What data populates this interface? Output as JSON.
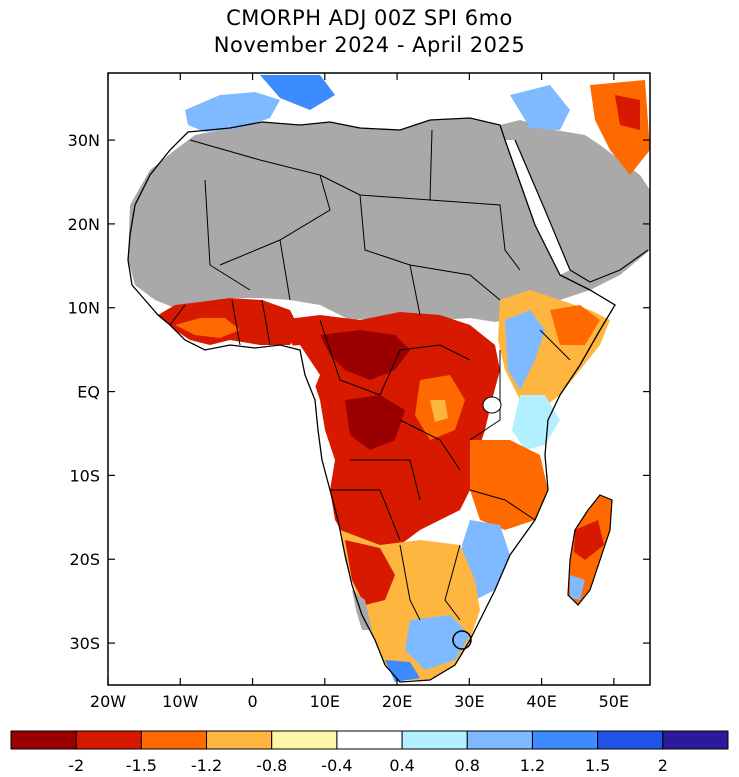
{
  "title": {
    "line1": "CMORPH ADJ 00Z SPI 6mo",
    "line2": "November 2024 - April 2025"
  },
  "map": {
    "lon_range": [
      -20,
      55
    ],
    "lat_range": [
      -35,
      38
    ],
    "lat_ticks": [
      {
        "value": 30,
        "label": "30N"
      },
      {
        "value": 20,
        "label": "20N"
      },
      {
        "value": 10,
        "label": "10N"
      },
      {
        "value": 0,
        "label": "EQ"
      },
      {
        "value": -10,
        "label": "10S"
      },
      {
        "value": -20,
        "label": "20S"
      },
      {
        "value": -30,
        "label": "30S"
      }
    ],
    "lon_ticks": [
      {
        "value": -20,
        "label": "20W"
      },
      {
        "value": -10,
        "label": "10W"
      },
      {
        "value": 0,
        "label": "0"
      },
      {
        "value": 10,
        "label": "10E"
      },
      {
        "value": 20,
        "label": "20E"
      },
      {
        "value": 30,
        "label": "30E"
      },
      {
        "value": 40,
        "label": "40E"
      },
      {
        "value": 50,
        "label": "50E"
      }
    ],
    "no_data_color": "#a9a9a9",
    "land_border_color": "#000000"
  },
  "legend": {
    "colors": [
      "#9b0000",
      "#d71900",
      "#ff6a00",
      "#ffb640",
      "#fff7a8",
      "#ffffff",
      "#b3f0ff",
      "#7fb9ff",
      "#3c8cff",
      "#1e55e6",
      "#2b1a9c"
    ],
    "labels": [
      "-2",
      "-1.5",
      "-1.2",
      "-0.8",
      "-0.4",
      "0.4",
      "0.8",
      "1.2",
      "1.5",
      "2"
    ]
  }
}
